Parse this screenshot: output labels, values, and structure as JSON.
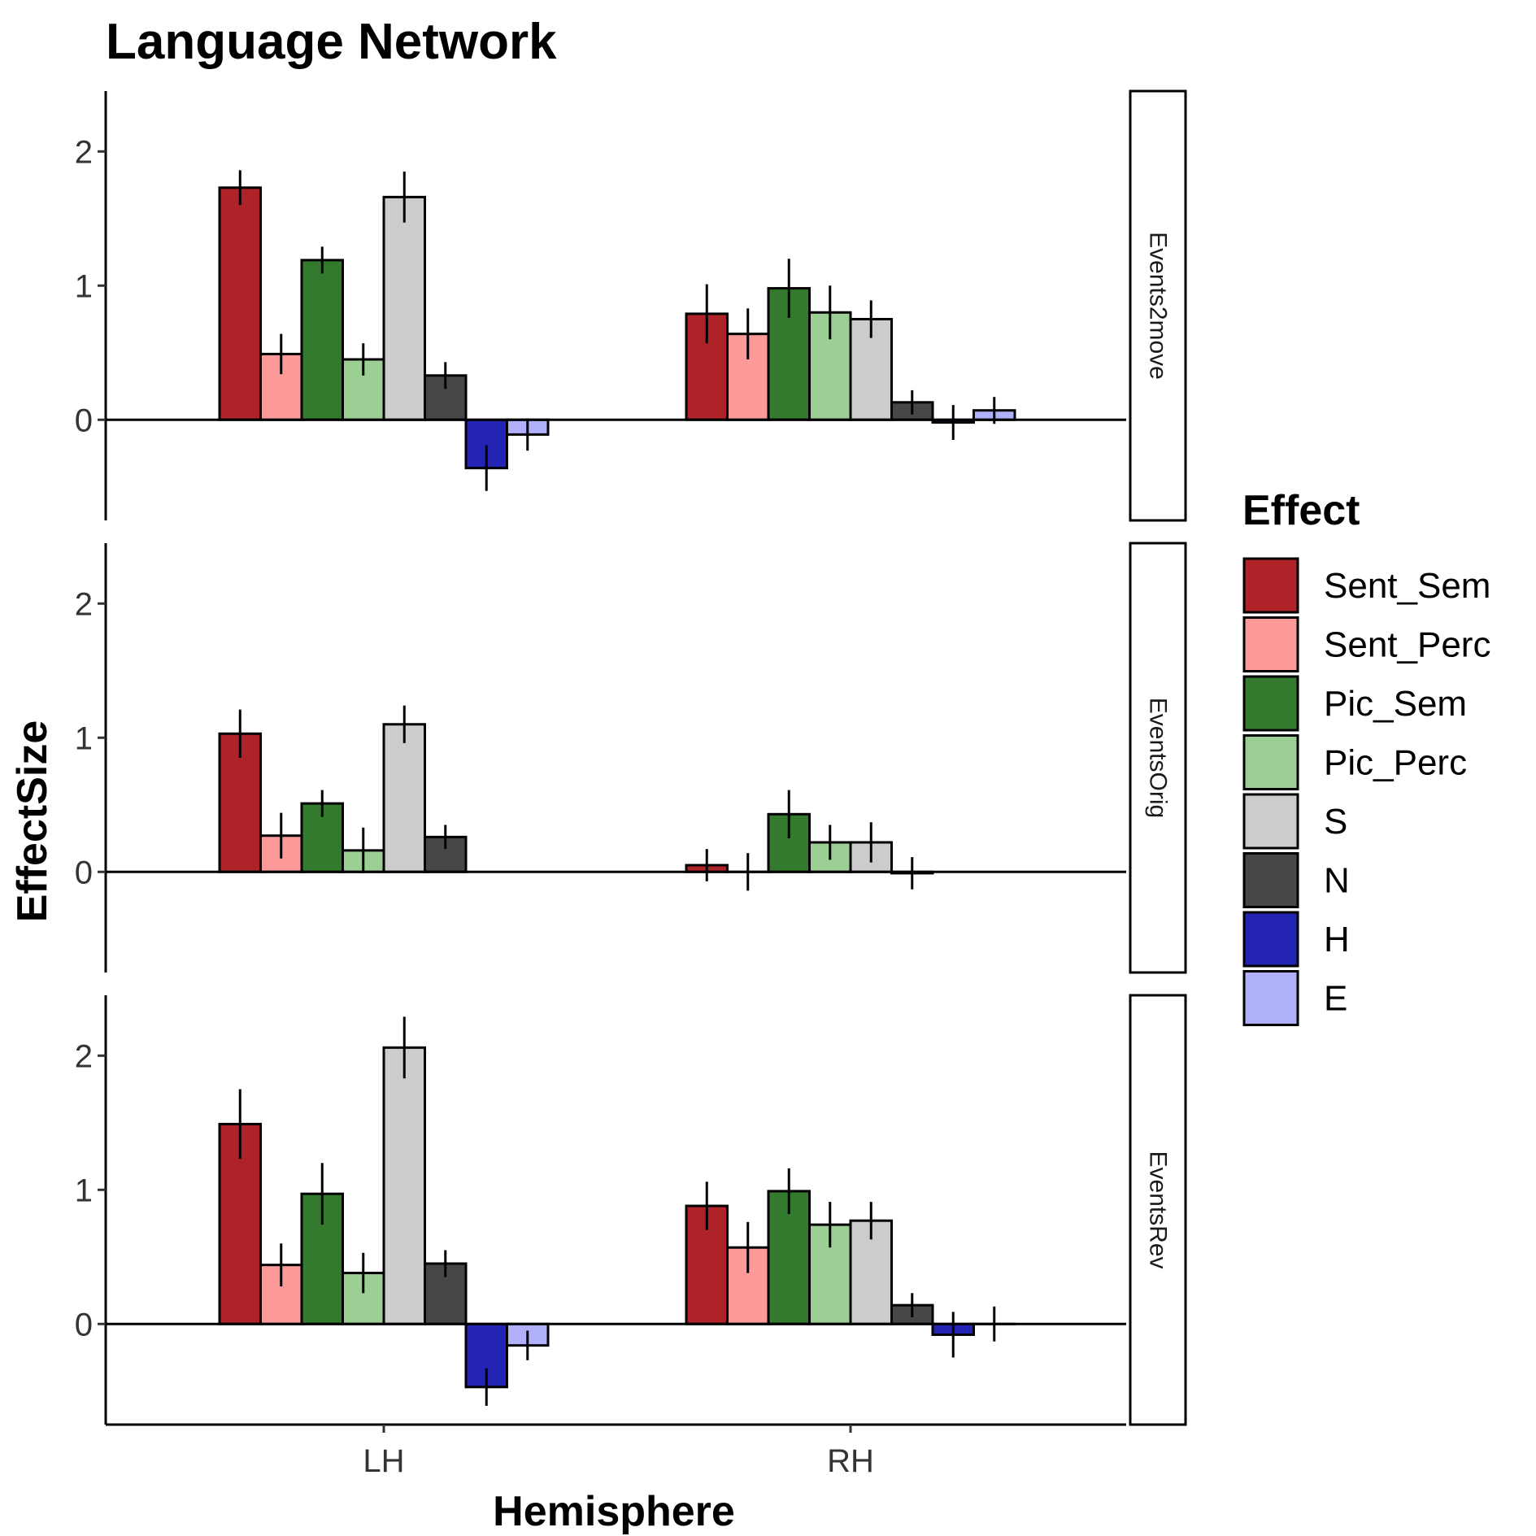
{
  "chart_data": {
    "type": "bar",
    "title": "Language Network",
    "xlabel": "Hemisphere",
    "ylabel": "EffectSize",
    "categories": [
      "LH",
      "RH"
    ],
    "ylim": [
      -0.75,
      2.45
    ],
    "yticks": [
      0,
      1,
      2
    ],
    "legend": {
      "title": "Effect",
      "position": "right"
    },
    "grid": false,
    "series": [
      {
        "name": "Sent_Sem",
        "color": "#ad2328"
      },
      {
        "name": "Sent_Perc",
        "color": "#fc9a9a"
      },
      {
        "name": "Pic_Sem",
        "color": "#347a2e"
      },
      {
        "name": "Pic_Perc",
        "color": "#9ccf93"
      },
      {
        "name": "S",
        "color": "#cccccc"
      },
      {
        "name": "N",
        "color": "#474747"
      },
      {
        "name": "H",
        "color": "#2323b4"
      },
      {
        "name": "E",
        "color": "#b0b0fb"
      }
    ],
    "panels": [
      {
        "label": "Events2move",
        "values": {
          "LH": [
            1.73,
            0.49,
            1.19,
            0.45,
            1.66,
            0.33,
            -0.36,
            -0.11
          ],
          "RH": [
            0.79,
            0.64,
            0.98,
            0.8,
            0.75,
            0.13,
            -0.02,
            0.07
          ]
        },
        "errors": {
          "LH": [
            0.13,
            0.15,
            0.1,
            0.12,
            0.19,
            0.1,
            0.17,
            0.12
          ],
          "RH": [
            0.22,
            0.19,
            0.22,
            0.2,
            0.14,
            0.09,
            0.13,
            0.1
          ]
        }
      },
      {
        "label": "EventsOrig",
        "values": {
          "LH": [
            1.03,
            0.27,
            0.51,
            0.16,
            1.1,
            0.26,
            null,
            null
          ],
          "RH": [
            0.05,
            0.0,
            0.43,
            0.22,
            0.22,
            -0.01,
            null,
            null
          ]
        },
        "errors": {
          "LH": [
            0.18,
            0.17,
            0.1,
            0.17,
            0.14,
            0.09,
            null,
            null
          ],
          "RH": [
            0.12,
            0.14,
            0.18,
            0.13,
            0.15,
            0.12,
            null,
            null
          ]
        }
      },
      {
        "label": "EventsRev",
        "values": {
          "LH": [
            1.49,
            0.44,
            0.97,
            0.38,
            2.06,
            0.45,
            -0.47,
            -0.16
          ],
          "RH": [
            0.88,
            0.57,
            0.99,
            0.74,
            0.77,
            0.14,
            -0.08,
            0.0
          ]
        },
        "errors": {
          "LH": [
            0.26,
            0.16,
            0.23,
            0.15,
            0.23,
            0.1,
            0.14,
            0.11
          ],
          "RH": [
            0.18,
            0.19,
            0.17,
            0.17,
            0.14,
            0.09,
            0.17,
            0.13
          ]
        }
      }
    ]
  }
}
